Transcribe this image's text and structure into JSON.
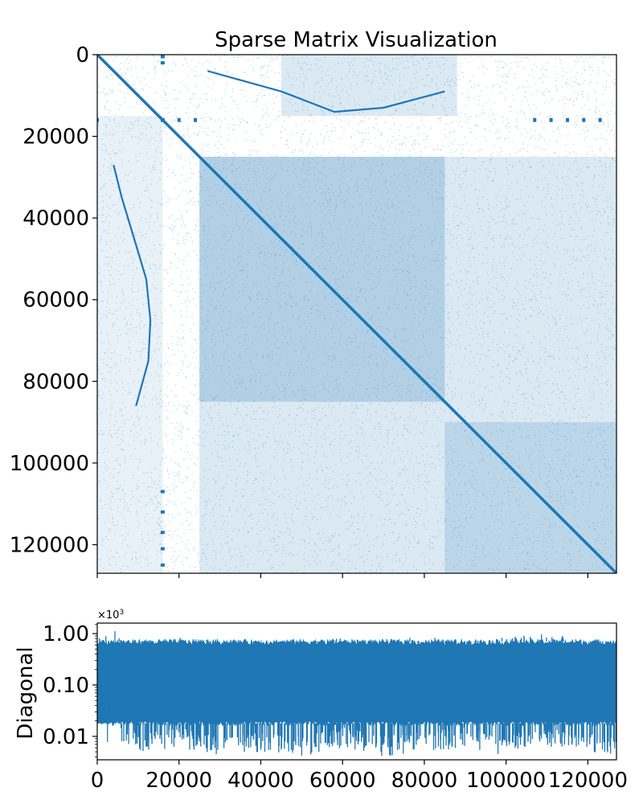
{
  "colors": {
    "accent": "#1f77b4",
    "axis": "#000000",
    "background": "#ffffff"
  },
  "chart_data": [
    {
      "type": "heatmap",
      "subtype": "sparsity-pattern (spy plot)",
      "title": "Sparse Matrix Visualization",
      "xlabel": "",
      "ylabel": "",
      "matrix_size": 127000,
      "xlim": [
        0,
        127000
      ],
      "ylim": [
        127000,
        0
      ],
      "xticks": [
        0,
        20000,
        40000,
        60000,
        80000,
        100000,
        120000
      ],
      "yticks": [
        0,
        20000,
        40000,
        60000,
        80000,
        100000,
        120000
      ],
      "y_tick_labels": [
        "0",
        "20000",
        "40000",
        "60000",
        "80000",
        "100000",
        "120000"
      ],
      "x_tick_labels_shown": false,
      "grid": false,
      "diagonal_band": {
        "from": [
          0,
          0
        ],
        "to": [
          127000,
          127000
        ]
      },
      "dense_blocks": [
        {
          "rows": [
            25000,
            127000
          ],
          "cols": [
            25000,
            127000
          ],
          "density": "medium"
        },
        {
          "rows": [
            25000,
            85000
          ],
          "cols": [
            25000,
            85000
          ],
          "density": "high"
        },
        {
          "rows": [
            15000,
            127000
          ],
          "cols": [
            0,
            16000
          ],
          "density": "low"
        },
        {
          "rows": [
            0,
            15000
          ],
          "cols": [
            45000,
            88000
          ],
          "density": "medium"
        },
        {
          "rows": [
            90000,
            127000
          ],
          "cols": [
            85000,
            127000
          ],
          "density": "medium"
        }
      ],
      "curves": [
        {
          "name": "upper arc",
          "points": [
            [
              27000,
              4000
            ],
            [
              45000,
              9000
            ],
            [
              58000,
              14000
            ],
            [
              70000,
              13000
            ],
            [
              85000,
              9000
            ]
          ]
        },
        {
          "name": "left arc",
          "points": [
            [
              4000,
              27000
            ],
            [
              6000,
              35000
            ],
            [
              9000,
              45000
            ],
            [
              12000,
              55000
            ],
            [
              13000,
              65000
            ],
            [
              12500,
              75000
            ],
            [
              9500,
              86000
            ]
          ]
        }
      ],
      "row_marks": [
        {
          "row": 16000,
          "cols": [
            0,
            16000,
            20000,
            24000,
            107000,
            111000,
            115000,
            119000,
            123000
          ]
        }
      ],
      "col_marks": [
        {
          "col": 16000,
          "rows": [
            500,
            2000,
            16000,
            107000,
            112000,
            117000,
            121000,
            125000
          ]
        }
      ]
    },
    {
      "type": "line",
      "ylabel": "Diagonal",
      "xlabel": "",
      "scale_note": "×10^3",
      "yscale": "log",
      "xlim": [
        0,
        127000
      ],
      "ylim": [
        0.0035,
        1.6
      ],
      "xticks": [
        0,
        20000,
        40000,
        60000,
        80000,
        100000,
        120000
      ],
      "x_tick_labels": [
        "0",
        "20000",
        "40000",
        "60000",
        "80000",
        "100000",
        "120000"
      ],
      "yticks": [
        1.0,
        0.1,
        0.01
      ],
      "y_tick_labels": [
        "1.00",
        "0.10",
        "0.01"
      ],
      "grid": false,
      "typical_band": {
        "low": 0.018,
        "high": 0.7
      },
      "envelope": {
        "x": [
          0,
          1500,
          2500,
          3000,
          4000,
          6000,
          10000,
          20000,
          30000,
          40000,
          50000,
          60000,
          70000,
          80000,
          90000,
          100000,
          110000,
          120000,
          127000
        ],
        "high": [
          0.8,
          1.1,
          1.2,
          1.15,
          1.2,
          0.75,
          0.7,
          0.85,
          0.7,
          0.75,
          0.7,
          0.85,
          0.7,
          0.9,
          0.7,
          0.85,
          1.0,
          0.8,
          0.7
        ],
        "low": [
          0.04,
          0.03,
          0.004,
          0.04,
          0.03,
          0.006,
          0.005,
          0.006,
          0.004,
          0.005,
          0.004,
          0.006,
          0.004,
          0.005,
          0.006,
          0.004,
          0.006,
          0.005,
          0.004
        ]
      }
    }
  ]
}
